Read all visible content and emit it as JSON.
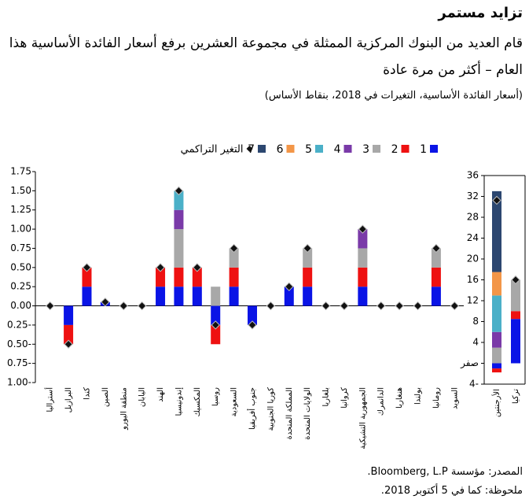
{
  "title": "تزايد مستمر",
  "subtitle": "قام العديد من البنوك المركزية الممثلة في مجموعة العشرين برفع أسعار الفائدة الأساسية هذا العام – أكثر من مرة عادة",
  "note": "(أسعار الفائدة الأساسية، التغيرات في 2018، بنقاط الأساس)",
  "source": "المصدر: مؤسسة Bloomberg, L.P.",
  "footnote": "ملحوظة: كما في 5 أكتوبر 2018.",
  "chart_data": [
    {
      "type": "stacked_bar",
      "categories": [
        "أستراليا",
        "البرازيل",
        "كندا",
        "الصين",
        "منطقة اليورو",
        "اليابان",
        "الهند",
        "إندونيسيا",
        "المكسيك",
        "روسيا",
        "السعودية",
        "جنوب أفريقيا",
        "كوريا الجنوبية",
        "المملكة المتحدة",
        "الولايات المتحدة",
        "بلغاريا",
        "كرواتيا",
        "الجمهورية التشيكية",
        "الدانمرك",
        "هنغاريا",
        "بولندا",
        "رومانيا",
        "السويد"
      ],
      "series": [
        {
          "name": "1",
          "color": "#0a14e6",
          "values": [
            0,
            -0.25,
            0.25,
            0.05,
            0,
            0,
            0.25,
            0.25,
            0.25,
            -0.25,
            0.25,
            -0.25,
            0,
            0.25,
            0.25,
            0,
            0,
            0.25,
            0,
            0,
            0,
            0.25,
            0
          ]
        },
        {
          "name": "2",
          "color": "#ee1111",
          "values": [
            0,
            -0.25,
            0.25,
            0,
            0,
            0,
            0.25,
            0.25,
            0.25,
            -0.25,
            0.25,
            0,
            0,
            0,
            0.25,
            0,
            0,
            0.25,
            0,
            0,
            0,
            0.25,
            0
          ]
        },
        {
          "name": "3",
          "color": "#a8a8a8",
          "values": [
            0,
            0,
            0,
            0,
            0,
            0,
            0,
            0.5,
            0,
            0.25,
            0.25,
            0,
            0,
            0,
            0.25,
            0,
            0,
            0.25,
            0,
            0,
            0,
            0.25,
            0
          ]
        },
        {
          "name": "4",
          "color": "#7a3aa8",
          "values": [
            0,
            0,
            0,
            0,
            0,
            0,
            0,
            0.25,
            0,
            0,
            0,
            0,
            0,
            0,
            0,
            0,
            0,
            0.25,
            0,
            0,
            0,
            0,
            0
          ]
        },
        {
          "name": "5",
          "color": "#4bb0c8",
          "values": [
            0,
            0,
            0,
            0,
            0,
            0,
            0,
            0.25,
            0,
            0,
            0,
            0,
            0,
            0,
            0,
            0,
            0,
            0,
            0,
            0,
            0,
            0,
            0
          ]
        },
        {
          "name": "6",
          "color": "#f39648",
          "values": [
            0,
            0,
            0,
            0,
            0,
            0,
            0,
            0,
            0,
            0,
            0,
            0,
            0,
            0,
            0,
            0,
            0,
            0,
            0,
            0,
            0,
            0,
            0
          ]
        },
        {
          "name": "7",
          "color": "#2c4770",
          "values": [
            0,
            0,
            0,
            0,
            0,
            0,
            0,
            0,
            0,
            0,
            0,
            0,
            0,
            0,
            0,
            0,
            0,
            0,
            0,
            0,
            0,
            0,
            0
          ]
        }
      ],
      "cumulative": {
        "name": "التغير التراكمي",
        "color": "#111111",
        "values": [
          0,
          -0.5,
          0.5,
          0.05,
          0,
          0,
          0.5,
          1.5,
          0.5,
          -0.25,
          0.75,
          -0.25,
          0,
          0.25,
          0.75,
          0,
          0,
          1.0,
          0,
          0,
          0,
          0.75,
          0
        ]
      },
      "ylim": [
        -1,
        1.75
      ],
      "yticks": [
        {
          "value": -1,
          "label": "1.00-"
        },
        {
          "value": -0.75,
          "label": "0.75-"
        },
        {
          "value": -0.5,
          "label": "0.50-"
        },
        {
          "value": -0.25,
          "label": "0.25-"
        },
        {
          "value": 0,
          "label": "0.00"
        },
        0.25,
        {
          "value": 0.5,
          "label": "0.50"
        },
        0.75,
        {
          "value": 1,
          "label": "1.00"
        },
        1.25,
        {
          "value": 1.5,
          "label": "1.50"
        },
        1.75
      ]
    },
    {
      "type": "stacked_bar",
      "categories": [
        "الأرجنتين",
        "تركيا"
      ],
      "series": [
        {
          "name": "1",
          "color": "#0a14e6",
          "values": [
            -1,
            8.5
          ]
        },
        {
          "name": "2",
          "color": "#ee1111",
          "values": [
            -0.75,
            1.5
          ]
        },
        {
          "name": "3",
          "color": "#a8a8a8",
          "values": [
            3,
            6
          ]
        },
        {
          "name": "4",
          "color": "#7a3aa8",
          "values": [
            3,
            0
          ]
        },
        {
          "name": "5",
          "color": "#4bb0c8",
          "values": [
            7,
            0
          ]
        },
        {
          "name": "6",
          "color": "#f39648",
          "values": [
            4.5,
            0
          ]
        },
        {
          "name": "7",
          "color": "#2c4770",
          "values": [
            15.5,
            0
          ]
        }
      ],
      "cumulative": {
        "name": "التغير التراكمي",
        "color": "#111111",
        "values": [
          31.25,
          16
        ]
      },
      "ylim": [
        -4,
        36
      ],
      "yticks": [
        {
          "value": -4,
          "label": "4-"
        },
        {
          "value": 0,
          "label": "صفر"
        },
        4,
        8,
        12,
        16,
        20,
        24,
        28,
        32,
        36
      ]
    }
  ]
}
